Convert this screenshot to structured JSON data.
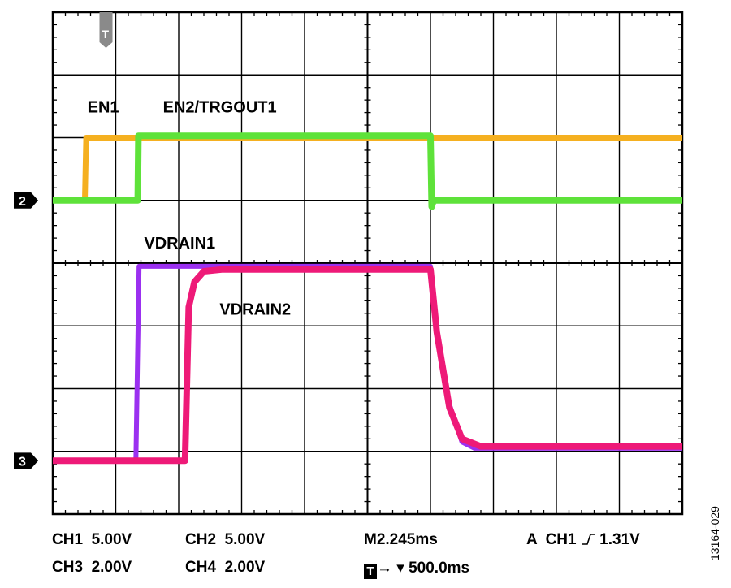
{
  "chart_data": {
    "type": "line",
    "title": "",
    "grid": {
      "x_divisions": 10,
      "y_divisions": 8,
      "minor_ticks": 5
    },
    "time_per_div_ms": 500.0,
    "x_unit": "div",
    "y_unit": "div",
    "xlim": [
      0,
      10
    ],
    "ylim": [
      0,
      8
    ],
    "trigger_marker": {
      "label": "T",
      "x_div": 1.0
    },
    "channel_markers": [
      {
        "label": "2",
        "y_div": 5.0
      },
      {
        "label": "3",
        "y_div": 0.85
      }
    ],
    "series": [
      {
        "name": "EN1",
        "color": "#f5b020",
        "width": 7,
        "points": [
          [
            0,
            5.0
          ],
          [
            0.51,
            5.0
          ],
          [
            0.53,
            6.0
          ],
          [
            1.35,
            6.0
          ],
          [
            10,
            6.0
          ]
        ]
      },
      {
        "name": "EN2/TRGOUT1",
        "color": "#5ee23a",
        "width": 8,
        "points": [
          [
            0,
            5.0
          ],
          [
            1.35,
            5.0
          ],
          [
            1.36,
            6.03
          ],
          [
            6.0,
            6.03
          ],
          [
            6.02,
            4.9
          ],
          [
            6.05,
            5.0
          ],
          [
            10,
            5.0
          ]
        ]
      },
      {
        "name": "VDRAIN1",
        "color": "#9b30f0",
        "width": 6,
        "points": [
          [
            0,
            0.85
          ],
          [
            1.32,
            0.85
          ],
          [
            1.37,
            3.95
          ],
          [
            6.0,
            3.95
          ],
          [
            6.1,
            2.9
          ],
          [
            6.3,
            1.75
          ],
          [
            6.5,
            1.15
          ],
          [
            6.7,
            1.05
          ],
          [
            10,
            1.05
          ]
        ]
      },
      {
        "name": "VDRAIN2",
        "color": "#ee1a78",
        "width": 8,
        "points": [
          [
            0,
            0.85
          ],
          [
            2.1,
            0.85
          ],
          [
            2.16,
            3.3
          ],
          [
            2.25,
            3.7
          ],
          [
            2.4,
            3.87
          ],
          [
            2.7,
            3.9
          ],
          [
            6.0,
            3.9
          ],
          [
            6.1,
            2.9
          ],
          [
            6.3,
            1.7
          ],
          [
            6.5,
            1.2
          ],
          [
            6.8,
            1.08
          ],
          [
            10,
            1.08
          ]
        ]
      }
    ],
    "annotations": [
      {
        "text": "EN1",
        "x_div": 0.55,
        "y_div": 6.4
      },
      {
        "text": "EN2/TRGOUT1",
        "x_div": 1.75,
        "y_div": 6.4
      },
      {
        "text": "VDRAIN1",
        "x_div": 1.45,
        "y_div": 4.23
      },
      {
        "text": "VDRAIN2",
        "x_div": 2.65,
        "y_div": 3.18
      }
    ]
  },
  "footer": {
    "ch1": "CH1  5.00V",
    "ch2": "CH2  5.00V",
    "ch3": "CH3  2.00V",
    "ch4": "CH4  2.00V",
    "timebase": "M2.245ms",
    "trigger_source": "A  CH1",
    "trigger_level": "1.31V",
    "trigger_box": "T",
    "trigger_offset": "→ ▾ 500.0ms"
  },
  "figure_id": "13164-029"
}
